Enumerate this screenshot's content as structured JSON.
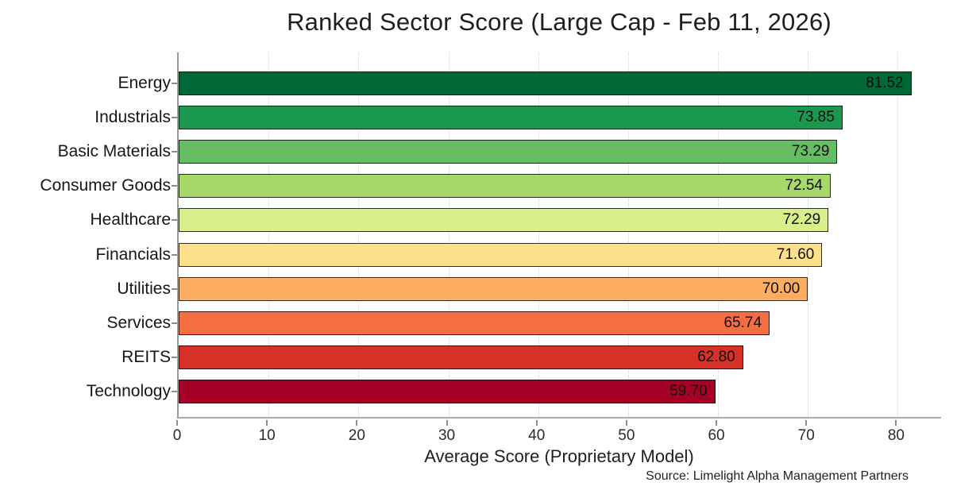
{
  "chart_data": {
    "type": "bar",
    "orientation": "horizontal",
    "title": "Ranked Sector Score (Large Cap - Feb 11, 2026)",
    "xlabel": "Average Score (Proprietary Model)",
    "source": "Source: Limelight Alpha Management Partners",
    "categories": [
      "Energy",
      "Industrials",
      "Basic Materials",
      "Consumer Goods",
      "Healthcare",
      "Financials",
      "Utilities",
      "Services",
      "REITS",
      "Technology"
    ],
    "values": [
      81.52,
      73.85,
      73.29,
      72.54,
      72.29,
      71.6,
      70.0,
      65.74,
      62.8,
      59.7
    ],
    "value_labels": [
      "81.52",
      "73.85",
      "73.29",
      "72.54",
      "72.29",
      "71.60",
      "70.00",
      "65.74",
      "62.80",
      "59.70"
    ],
    "bar_colors": [
      "#006837",
      "#1a9850",
      "#66bd63",
      "#a6d96a",
      "#d9ef8b",
      "#fee08b",
      "#fdae61",
      "#f46d43",
      "#d73027",
      "#a50026"
    ],
    "bar_edge_color": "rgba(15,15,15,0.85)",
    "xlim": [
      0,
      85
    ],
    "xticks": [
      0,
      10,
      20,
      30,
      40,
      50,
      60,
      70,
      80
    ],
    "grid": "vertical-dotted",
    "legend": "none"
  }
}
